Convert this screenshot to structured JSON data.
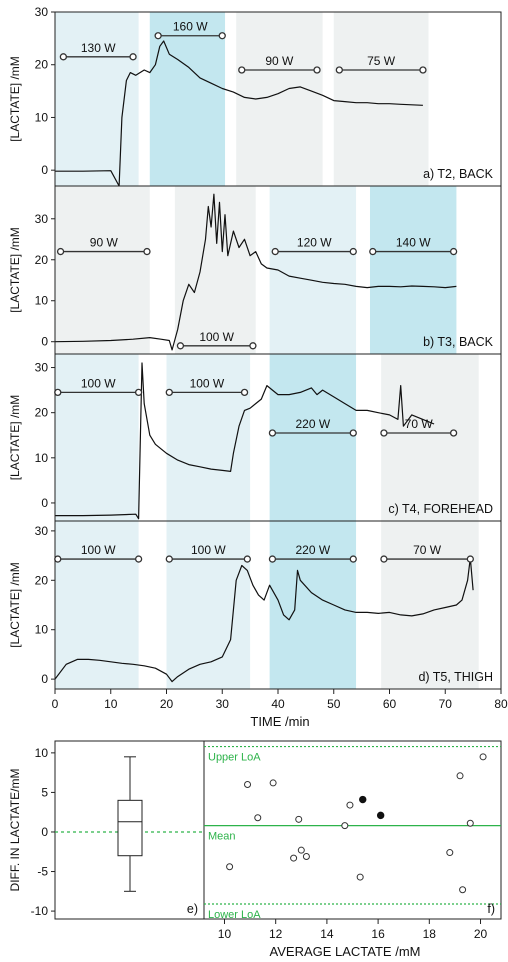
{
  "colors": {
    "shade_light": "#e3f1f5",
    "shade_mid": "#c3e7ef",
    "shade_gray": "#eef1f1",
    "green": "#2db34a",
    "black": "#111111"
  },
  "chart_data": [
    {
      "type": "line",
      "panel_label": "a) T2, BACK",
      "ylabel": "[LACTATE] /mM",
      "xlim": [
        0,
        80
      ],
      "ylim": [
        -3,
        30
      ],
      "yticks": [
        0,
        10,
        20,
        30
      ],
      "grid": false,
      "bands": [
        {
          "x0": 0,
          "x1": 15,
          "tone": "light"
        },
        {
          "x0": 17,
          "x1": 30.5,
          "tone": "mid"
        },
        {
          "x0": 32.5,
          "x1": 48,
          "tone": "gray"
        },
        {
          "x0": 50,
          "x1": 67,
          "tone": "gray"
        }
      ],
      "segments": [
        {
          "label": "130 W",
          "x0": 1.5,
          "x1": 14,
          "y": 21.5
        },
        {
          "label": "160 W",
          "x0": 18.5,
          "x1": 30,
          "y": 25.5
        },
        {
          "label": "90 W",
          "x0": 33.5,
          "x1": 47,
          "y": 19
        },
        {
          "label": "75 W",
          "x0": 51,
          "x1": 66,
          "y": 19
        }
      ],
      "series": [
        {
          "x": [
            0,
            5,
            10,
            11.5,
            12,
            12.8,
            13.5,
            14.5,
            16,
            17,
            18,
            18.8,
            19.5,
            20.5,
            22,
            24,
            26,
            28,
            30,
            32,
            34,
            36,
            38,
            40,
            42,
            44,
            46,
            48,
            50,
            52,
            54,
            56,
            58,
            60,
            62,
            64,
            66
          ],
          "y": [
            -0.2,
            -0.2,
            -0.1,
            -3,
            10,
            17,
            18.5,
            18,
            19,
            18.5,
            20,
            23.5,
            24.5,
            22,
            21,
            19.5,
            17.5,
            16.5,
            15.5,
            14.8,
            13.8,
            13.5,
            13.8,
            14.5,
            15.5,
            15.8,
            15,
            14.2,
            13.2,
            13,
            12.8,
            12.8,
            12.6,
            12.6,
            12.5,
            12.4,
            12.3
          ]
        }
      ]
    },
    {
      "type": "line",
      "panel_label": "b) T3, BACK",
      "ylabel": "[LACTATE] /mM",
      "xlim": [
        0,
        80
      ],
      "ylim": [
        -3,
        38
      ],
      "yticks": [
        0,
        10,
        20,
        30
      ],
      "grid": false,
      "bands": [
        {
          "x0": 0,
          "x1": 17,
          "tone": "gray"
        },
        {
          "x0": 21.5,
          "x1": 36,
          "tone": "gray"
        },
        {
          "x0": 38.5,
          "x1": 54,
          "tone": "light"
        },
        {
          "x0": 56.5,
          "x1": 72,
          "tone": "mid"
        }
      ],
      "segments": [
        {
          "label": "90 W",
          "x0": 1,
          "x1": 16.5,
          "y": 22
        },
        {
          "label": "100 W",
          "x0": 22.5,
          "x1": 35.5,
          "y": -1
        },
        {
          "label": "120 W",
          "x0": 39.5,
          "x1": 53.5,
          "y": 22
        },
        {
          "label": "140 W",
          "x0": 57,
          "x1": 71.5,
          "y": 22
        }
      ],
      "series": [
        {
          "x": [
            0,
            5,
            10,
            14,
            17,
            19,
            20.5,
            21,
            22,
            23,
            24,
            25,
            26,
            27,
            27.5,
            28,
            28.5,
            29,
            29.5,
            30,
            30.5,
            31,
            32,
            33,
            34,
            35,
            36,
            37,
            38,
            40,
            42,
            44,
            46,
            48,
            50,
            52,
            54,
            56,
            58,
            60,
            62,
            64,
            66,
            68,
            70,
            72
          ],
          "y": [
            0,
            0.1,
            0.3,
            0.6,
            1.0,
            0.6,
            0.3,
            -2,
            3,
            10,
            14,
            12,
            17,
            25,
            33,
            28,
            36,
            24,
            34,
            22,
            31,
            21,
            27,
            23,
            25,
            21,
            22,
            19,
            18,
            17.5,
            16,
            15.5,
            15,
            14.5,
            14.2,
            14,
            13.5,
            13.2,
            13.5,
            13.5,
            13.4,
            13.6,
            13.5,
            13.4,
            13.2,
            13.5
          ]
        }
      ]
    },
    {
      "type": "line",
      "panel_label": "c) T4, FOREHEAD",
      "ylabel": "[LACTATE] /mM",
      "xlim": [
        0,
        80
      ],
      "ylim": [
        -4,
        33
      ],
      "yticks": [
        0,
        10,
        20,
        30
      ],
      "grid": false,
      "bands": [
        {
          "x0": 0,
          "x1": 15,
          "tone": "light"
        },
        {
          "x0": 20,
          "x1": 35,
          "tone": "light"
        },
        {
          "x0": 38.5,
          "x1": 54,
          "tone": "mid"
        },
        {
          "x0": 58.5,
          "x1": 76,
          "tone": "gray"
        }
      ],
      "segments": [
        {
          "label": "100 W",
          "x0": 0.5,
          "x1": 15,
          "y": 24.5
        },
        {
          "label": "100 W",
          "x0": 20.5,
          "x1": 34,
          "y": 24.5
        },
        {
          "label": "220 W",
          "x0": 39,
          "x1": 53.5,
          "y": 15.5
        },
        {
          "label": "70 W",
          "x0": 59,
          "x1": 71.5,
          "y": 15.5
        }
      ],
      "series": [
        {
          "x": [
            0,
            5,
            10,
            14.5,
            15,
            15.6,
            16,
            17,
            18,
            20,
            22,
            24,
            26,
            28,
            30,
            31.5,
            32,
            33,
            34,
            35,
            36,
            37,
            38,
            40,
            42,
            44,
            46,
            47,
            48,
            50,
            52,
            54,
            56,
            58,
            60,
            61.5,
            62,
            62.5,
            64,
            66,
            68
          ],
          "y": [
            -2.8,
            -2.8,
            -2.7,
            -2.5,
            -3.5,
            31,
            22,
            15,
            13,
            11,
            9.5,
            8.5,
            8,
            7.5,
            7.2,
            7,
            11,
            17,
            20.5,
            21,
            22,
            23,
            26,
            24,
            24,
            24.5,
            25.5,
            24,
            25,
            23.5,
            22,
            20.5,
            20.5,
            20,
            19.5,
            18.5,
            26,
            17,
            19.5,
            18.5,
            17.5
          ]
        }
      ]
    },
    {
      "type": "line",
      "panel_label": "d) T5, THIGH",
      "ylabel": "[LACTATE] /mM",
      "xlim": [
        0,
        80
      ],
      "ylim": [
        -2,
        32
      ],
      "yticks": [
        0,
        10,
        20,
        30
      ],
      "grid": false,
      "bands": [
        {
          "x0": 0,
          "x1": 15,
          "tone": "light"
        },
        {
          "x0": 20,
          "x1": 35,
          "tone": "light"
        },
        {
          "x0": 38.5,
          "x1": 54,
          "tone": "mid"
        },
        {
          "x0": 58.5,
          "x1": 76,
          "tone": "gray"
        }
      ],
      "segments": [
        {
          "label": "100 W",
          "x0": 0.5,
          "x1": 15,
          "y": 24.3
        },
        {
          "label": "100 W",
          "x0": 20.5,
          "x1": 34.5,
          "y": 24.3
        },
        {
          "label": "220 W",
          "x0": 39,
          "x1": 53.5,
          "y": 24.3
        },
        {
          "label": "70 W",
          "x0": 59,
          "x1": 74.5,
          "y": 24.3
        }
      ],
      "series": [
        {
          "x": [
            0,
            2,
            4,
            6,
            8,
            10,
            12,
            14,
            16,
            18,
            20,
            21,
            22,
            24,
            26,
            28,
            30,
            31.5,
            32.5,
            33.5,
            34.5,
            35.5,
            36.5,
            37.5,
            38.5,
            40,
            41,
            42,
            43,
            43.5,
            44,
            46,
            48,
            50,
            52,
            54,
            56,
            58,
            60,
            62,
            64,
            66,
            68,
            70,
            72,
            73,
            74,
            74.5,
            75
          ],
          "y": [
            0,
            3,
            4,
            4,
            3.8,
            3.5,
            3.2,
            3,
            2.7,
            2.2,
            1,
            -0.5,
            0.5,
            2,
            3,
            3.5,
            4.5,
            8,
            20,
            23,
            22,
            19,
            17,
            16,
            19,
            16,
            13,
            12,
            14,
            22,
            20,
            17.5,
            16,
            15,
            14,
            13.5,
            13.5,
            13.3,
            13.5,
            13,
            12.8,
            13.2,
            14,
            14.5,
            15,
            16,
            20,
            24.5,
            18
          ]
        }
      ]
    },
    {
      "type": "box",
      "panel_label": "e)",
      "ylabel": "DIFF. IN LACTATE/mM",
      "ylim": [
        -11,
        11.5
      ],
      "yticks": [
        -10,
        -5,
        0,
        5,
        10
      ],
      "box": {
        "whisker_low": -7.5,
        "q1": -3,
        "median": 1.3,
        "q3": 4,
        "whisker_high": 9.5
      },
      "mean": 0
    },
    {
      "type": "scatter",
      "panel_label": "f)",
      "xlabel": "AVERAGE LACTATE /mM",
      "xlim": [
        9.2,
        20.8
      ],
      "ylim": [
        -11,
        11.5
      ],
      "xticks": [
        10,
        12,
        14,
        16,
        18,
        20
      ],
      "lines": [
        {
          "label": "Upper LoA",
          "y": 10.8,
          "style": "dotted"
        },
        {
          "label": "Mean",
          "y": 0.8,
          "style": "solid"
        },
        {
          "label": "Lower LoA",
          "y": -9.1,
          "style": "dotted"
        }
      ],
      "points_open": [
        [
          10.2,
          -4.4
        ],
        [
          10.9,
          6
        ],
        [
          11.3,
          1.8
        ],
        [
          11.9,
          6.2
        ],
        [
          12.7,
          -3.3
        ],
        [
          12.9,
          1.6
        ],
        [
          13.0,
          -2.3
        ],
        [
          13.2,
          -3.1
        ],
        [
          14.7,
          0.8
        ],
        [
          14.9,
          3.4
        ],
        [
          15.3,
          -5.7
        ],
        [
          18.8,
          -2.6
        ],
        [
          19.2,
          7.1
        ],
        [
          19.3,
          -7.3
        ],
        [
          19.6,
          1.1
        ],
        [
          20.1,
          9.5
        ]
      ],
      "points_filled": [
        [
          15.4,
          4.1
        ],
        [
          16.1,
          2.1
        ]
      ]
    }
  ],
  "x_axis": {
    "xlabel": "TIME /min",
    "xticks": [
      0,
      10,
      20,
      30,
      40,
      50,
      60,
      70,
      80
    ]
  }
}
